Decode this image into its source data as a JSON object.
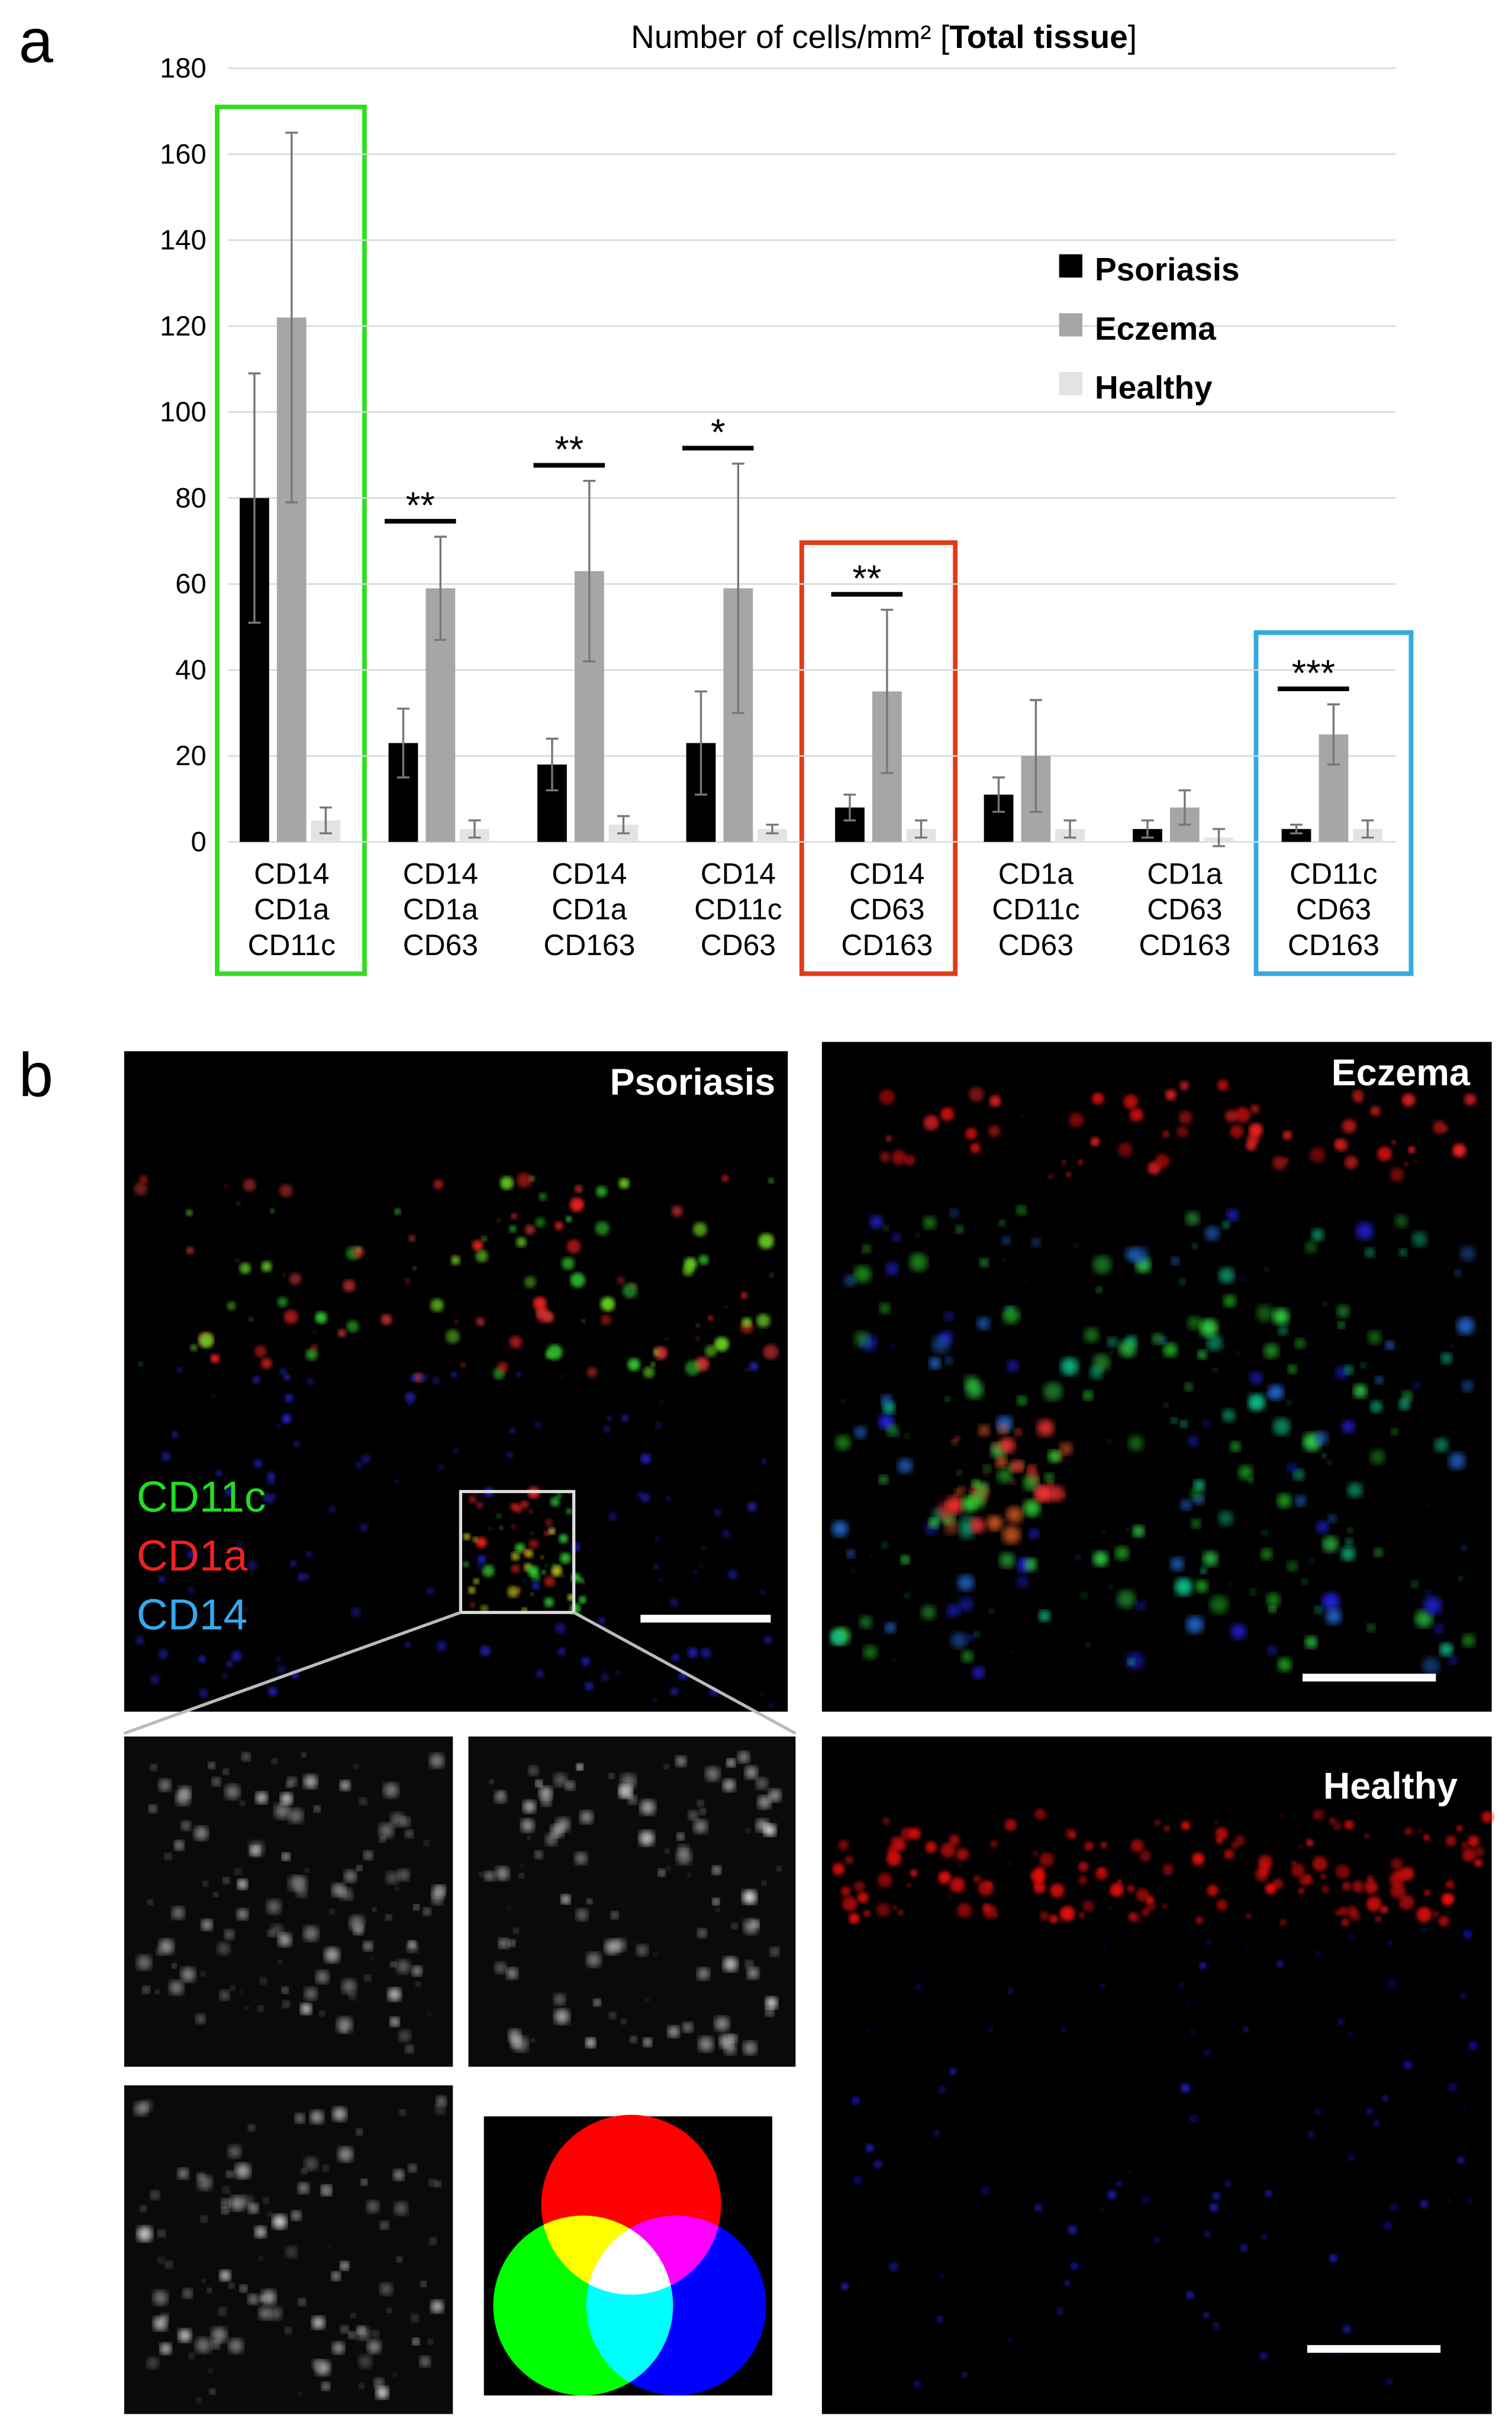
{
  "panel_labels": [
    "a",
    "b"
  ],
  "chart_data": {
    "type": "bar",
    "title": [
      "Number of cells/mm² [",
      "Total tissue",
      "]"
    ],
    "categories": [
      [
        "CD14",
        "CD1a",
        "CD11c"
      ],
      [
        "CD14",
        "CD1a",
        "CD63"
      ],
      [
        "CD14",
        "CD1a",
        "CD163"
      ],
      [
        "CD14",
        "CD11c",
        "CD63"
      ],
      [
        "CD14",
        "CD63",
        "CD163"
      ],
      [
        "CD1a",
        "CD11c",
        "CD63"
      ],
      [
        "CD1a",
        "CD63",
        "CD163"
      ],
      [
        "CD11c",
        "CD63",
        "CD163"
      ]
    ],
    "series": [
      {
        "name": "Psoriasis",
        "color": "#000000",
        "values": [
          80,
          23,
          18,
          23,
          8,
          11,
          3,
          3
        ],
        "errors": [
          29,
          8,
          6,
          12,
          3,
          4,
          2,
          1
        ]
      },
      {
        "name": "Eczema",
        "color": "#a6a6a6",
        "values": [
          122,
          59,
          63,
          59,
          35,
          20,
          8,
          25
        ],
        "errors": [
          43,
          12,
          21,
          29,
          19,
          13,
          4,
          7
        ]
      },
      {
        "name": "Healthy",
        "color": "#e3e3e3",
        "values": [
          5,
          3,
          4,
          3,
          3,
          3,
          1,
          3
        ],
        "errors": [
          3,
          2,
          2,
          1,
          2,
          2,
          2,
          2
        ]
      }
    ],
    "annotations": [
      {
        "text": "**",
        "category": 1
      },
      {
        "text": "**",
        "category": 2
      },
      {
        "text": "*",
        "category": 3
      },
      {
        "text": "**",
        "category": 4
      },
      {
        "text": "***",
        "category": 7
      }
    ],
    "ylim": [
      0,
      180
    ],
    "yticks": [
      0,
      20,
      40,
      60,
      80,
      100,
      120,
      140,
      160,
      180
    ],
    "grid": true
  },
  "images": {
    "psoriasis": "Psoriasis",
    "eczema": "Eczema",
    "healthy": "Healthy",
    "channels": [
      {
        "name": "CD11c",
        "color": "#22dd22"
      },
      {
        "name": "CD1a",
        "color": "#ee2222"
      },
      {
        "name": "CD14",
        "color": "#33aaee"
      }
    ]
  }
}
